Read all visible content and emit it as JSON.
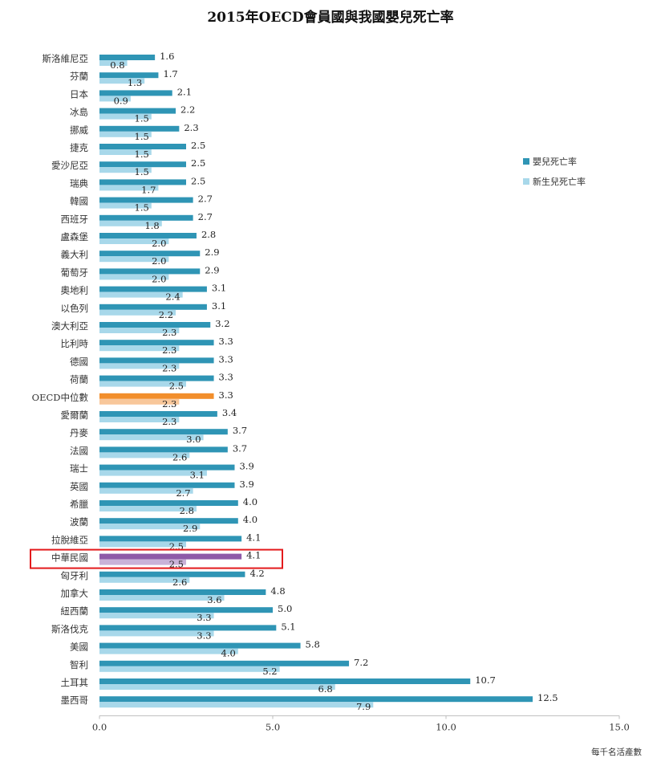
{
  "chart_data": {
    "type": "bar",
    "orientation": "horizontal",
    "title": "2015年OECD會員國與我國嬰兒死亡率",
    "xlabel": "每千名活產數",
    "xlim": [
      0,
      15
    ],
    "xticks": [
      "0.0",
      "5.0",
      "10.0",
      "15.0"
    ],
    "categories": [
      "斯洛維尼亞",
      "芬蘭",
      "日本",
      "冰島",
      "挪威",
      "捷克",
      "愛沙尼亞",
      "瑞典",
      "韓國",
      "西班牙",
      "盧森堡",
      "義大利",
      "葡萄牙",
      "奧地利",
      "以色列",
      "澳大利亞",
      "比利時",
      "德國",
      "荷蘭",
      "OECD中位數",
      "愛爾蘭",
      "丹麥",
      "法國",
      "瑞士",
      "英國",
      "希臘",
      "波蘭",
      "拉脫維亞",
      "中華民國",
      "匈牙利",
      "加拿大",
      "紐西蘭",
      "斯洛伐克",
      "美國",
      "智利",
      "土耳其",
      "墨西哥"
    ],
    "series": [
      {
        "name": "嬰兒死亡率",
        "color": "#2f95b5",
        "values": [
          1.6,
          1.7,
          2.1,
          2.2,
          2.3,
          2.5,
          2.5,
          2.5,
          2.7,
          2.7,
          2.8,
          2.9,
          2.9,
          3.1,
          3.1,
          3.2,
          3.3,
          3.3,
          3.3,
          3.3,
          3.4,
          3.7,
          3.7,
          3.9,
          3.9,
          4.0,
          4.0,
          4.1,
          4.1,
          4.2,
          4.8,
          5.0,
          5.1,
          5.8,
          7.2,
          10.7,
          12.5
        ]
      },
      {
        "name": "新生兒死亡率",
        "color": "#a8d8ea",
        "values": [
          0.8,
          1.3,
          0.9,
          1.5,
          1.5,
          1.5,
          1.5,
          1.7,
          1.5,
          1.8,
          2.0,
          2.0,
          2.0,
          2.4,
          2.2,
          2.3,
          2.3,
          2.3,
          2.5,
          2.3,
          2.3,
          3.0,
          2.6,
          3.1,
          2.7,
          2.8,
          2.9,
          2.5,
          2.5,
          2.6,
          3.6,
          3.3,
          3.3,
          4.0,
          5.2,
          6.8,
          7.9
        ]
      }
    ],
    "highlight": {
      "OECD中位數": {
        "primary": "#f28e2b",
        "secondary": "#f8c79a"
      },
      "中華民國": {
        "primary": "#8e5aa8",
        "secondary": "#c9b2d8"
      }
    },
    "highlight_box_category": "中華民國",
    "highlight_box_color": "#e31a1c",
    "legend_position": "right"
  }
}
